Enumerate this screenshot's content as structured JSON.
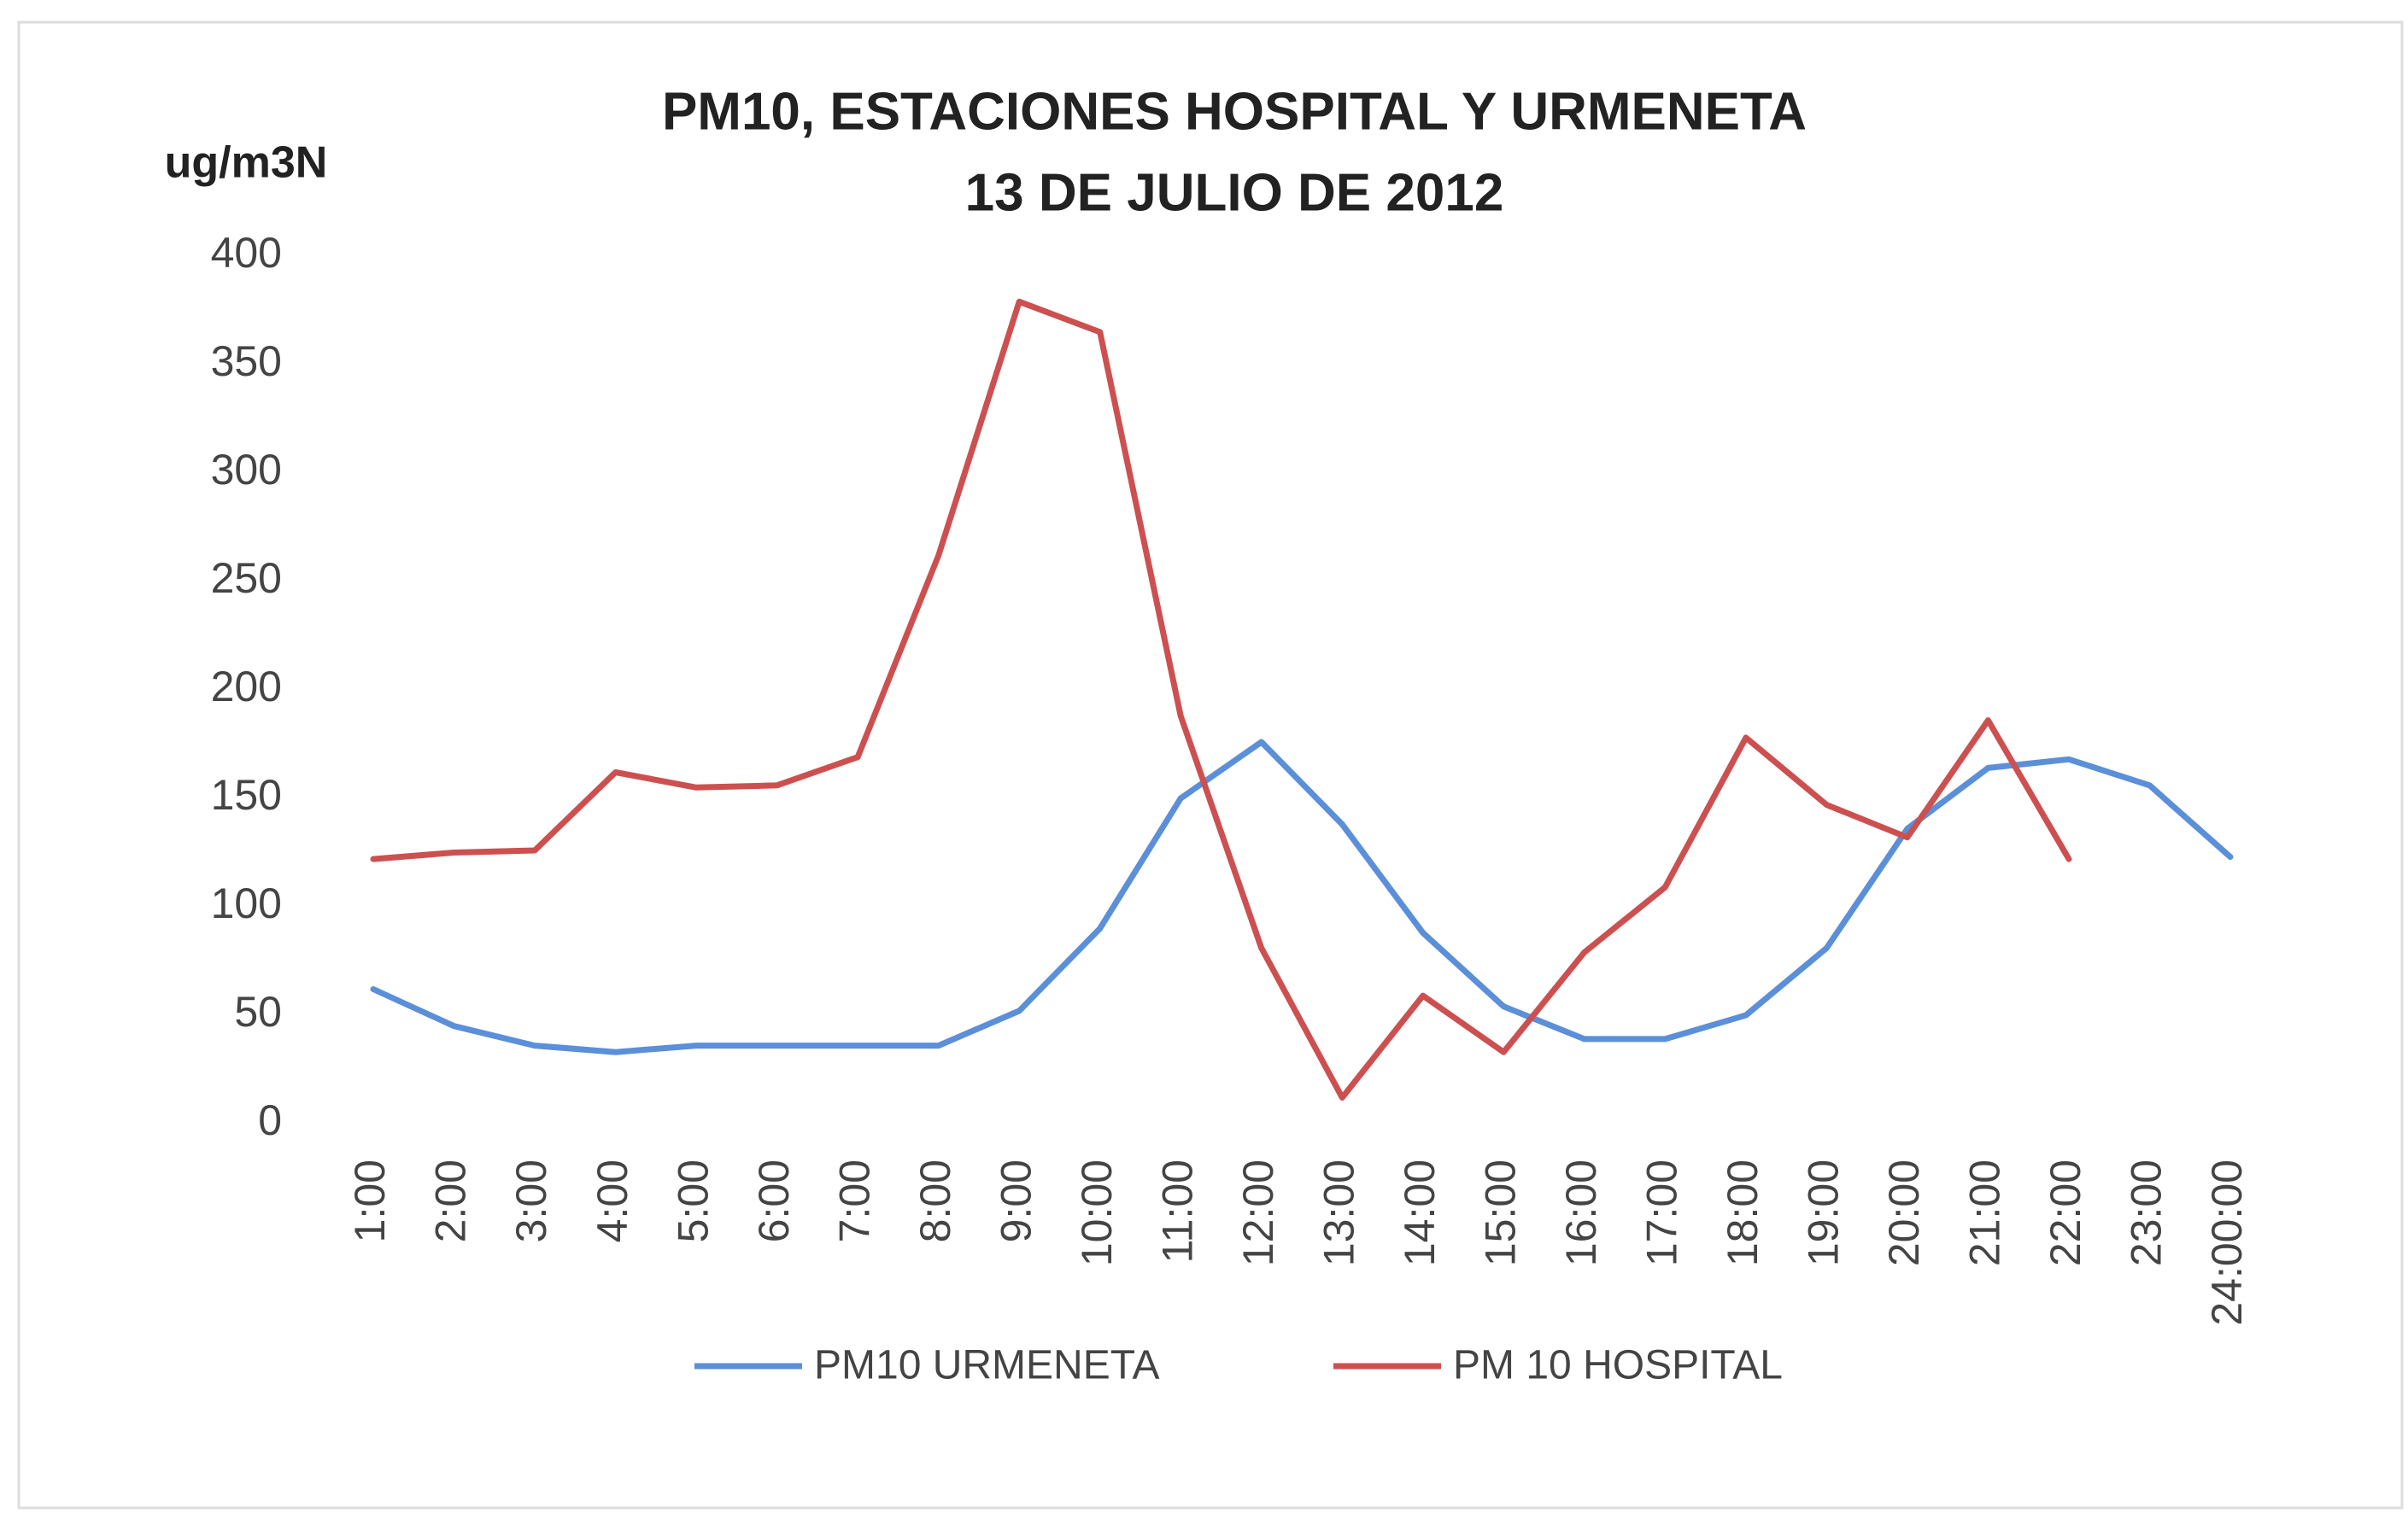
{
  "chart_data": {
    "type": "line",
    "title": "PM10, ESTACIONES HOSPITAL Y URMENETA",
    "subtitle": "13 DE JULIO DE 2012",
    "y_label": "ug/m3N",
    "categories": [
      "1:00",
      "2:00",
      "3:00",
      "4:00",
      "5:00",
      "6:00",
      "7:00",
      "8:00",
      "9:00",
      "10:00",
      "11:00",
      "12:00",
      "13:00",
      "14:00",
      "15:00",
      "16:00",
      "17:00",
      "18:00",
      "19:00",
      "20:00",
      "21:00",
      "22:00",
      "23:00",
      "24:00:00"
    ],
    "series": [
      {
        "name": "PM10 URMENETA",
        "color": "#5b8fd9",
        "values": [
          62,
          45,
          36,
          33,
          36,
          36,
          36,
          36,
          52,
          90,
          150,
          176,
          138,
          88,
          54,
          39,
          39,
          50,
          81,
          136,
          164,
          168,
          156,
          123
        ]
      },
      {
        "name": "PM 10 HOSPITAL",
        "color": "#cd5050",
        "values": [
          122,
          125,
          126,
          162,
          155,
          156,
          169,
          262,
          379,
          365,
          188,
          81,
          12,
          59,
          33,
          79,
          109,
          178,
          147,
          132,
          186,
          122,
          null,
          null
        ]
      }
    ],
    "ylim": [
      0,
      400
    ],
    "yticks": [
      0,
      50,
      100,
      150,
      200,
      250,
      300,
      350,
      400
    ],
    "grid": false,
    "legend": "bottom"
  }
}
